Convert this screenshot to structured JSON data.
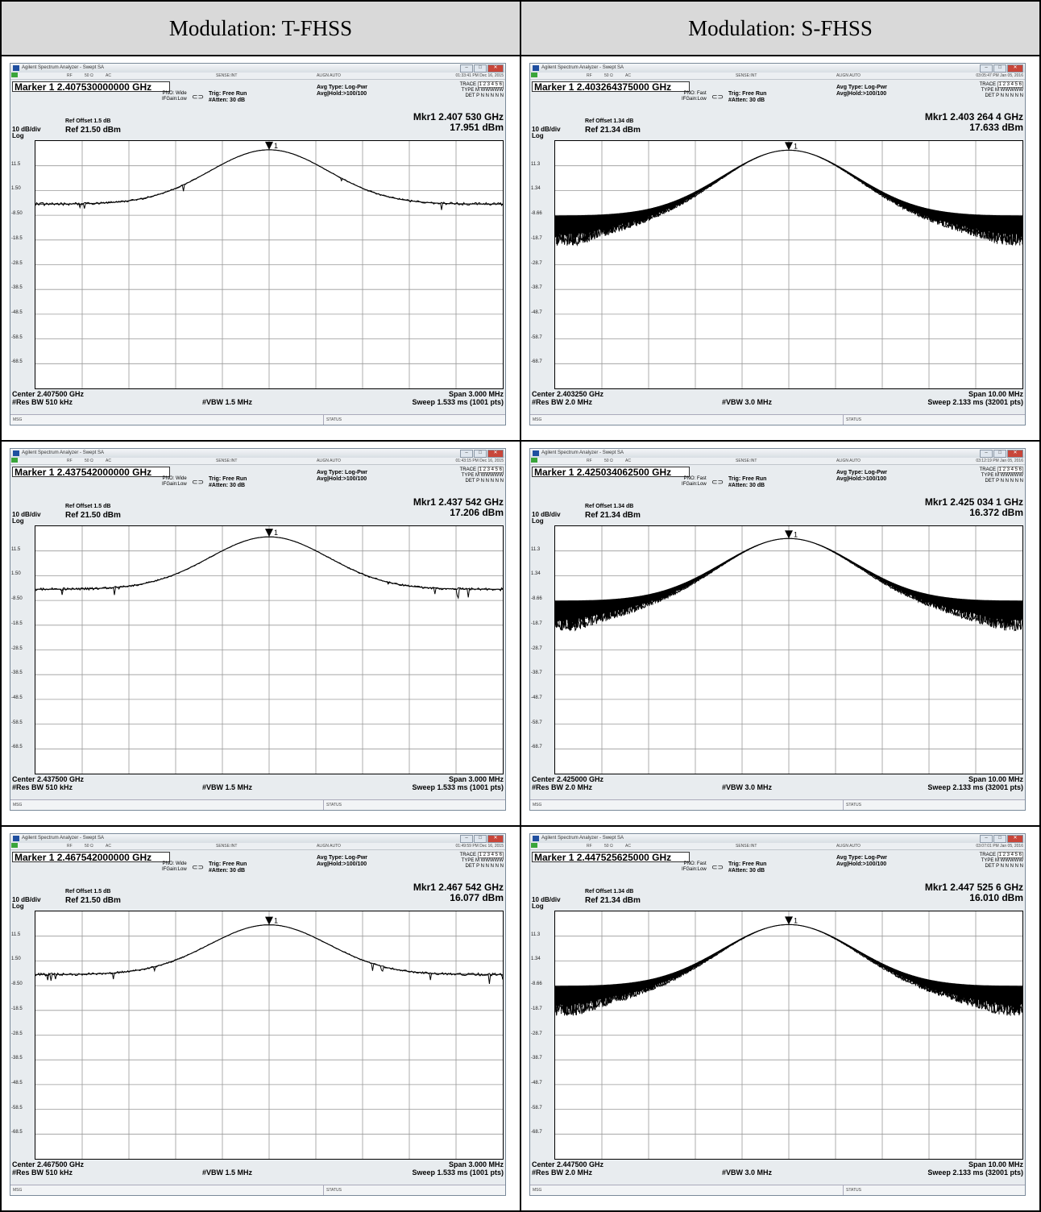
{
  "headers": [
    "Modulation: T-FHSS",
    "Modulation: S-FHSS"
  ],
  "common": {
    "window_title": "Agilent Spectrum Analyzer - Swept SA",
    "rf": "RF",
    "ohm": "50 Ω",
    "ac": "AC",
    "sense": "SENSE:INT",
    "align": "ALIGN AUTO",
    "avg_type": "Avg Type: Log-Pwr",
    "trig": "Trig: Free Run",
    "atten": "#Atten: 30 dB",
    "if_gain": "IFGain:Low",
    "trace_label": "TRACE",
    "trace_vals": "1 2 3 4 5 6",
    "type_label": "TYPE",
    "type_vals": "M WWWWW",
    "det_label": "DET",
    "det_vals": "P N N N N N",
    "db_div": "10 dB/div",
    "log": "Log",
    "msg": "MSG",
    "status": "STATUS"
  },
  "screens": [
    {
      "timestamp": "01:33:41 PM Dec 16, 2015",
      "marker": "Marker 1 2.407530000000 GHz",
      "pno": "PNO: Wide",
      "avg_hold": "Avg|Hold:>100/100",
      "mkr_freq": "Mkr1 2.407 530 GHz",
      "mkr_amp": "17.951 dBm",
      "ref_offset": "Ref Offset 1.5 dB",
      "ref": "Ref 21.50 dBm",
      "yticks": [
        "11.5",
        "1.50",
        "-8.50",
        "-18.5",
        "-28.5",
        "-38.5",
        "-48.5",
        "-58.5",
        "-68.5"
      ],
      "center": "Center 2.407500 GHz",
      "res_bw": "#Res BW 510 kHz",
      "vbw": "#VBW 1.5 MHz",
      "span": "Span 3.000 MHz",
      "sweep": "Sweep  1.533 ms (1001 pts)",
      "shape": "T",
      "peak": 17.951,
      "ref_level": 21.5
    },
    {
      "timestamp": "03:05:47 PM Jan 05, 2016",
      "marker": "Marker 1 2.403264375000 GHz",
      "pno": "PNO: Fast",
      "avg_hold": "Avg|Hold:>100/100",
      "mkr_freq": "Mkr1 2.403 264 4 GHz",
      "mkr_amp": "17.633 dBm",
      "ref_offset": "Ref Offset 1.34 dB",
      "ref": "Ref 21.34 dBm",
      "yticks": [
        "11.3",
        "1.34",
        "-8.66",
        "-18.7",
        "-28.7",
        "-38.7",
        "-48.7",
        "-58.7",
        "-68.7"
      ],
      "center": "Center 2.403250 GHz",
      "res_bw": "#Res BW 2.0 MHz",
      "vbw": "#VBW 3.0 MHz",
      "span": "Span 10.00 MHz",
      "sweep": "Sweep  2.133 ms (32001 pts)",
      "shape": "S",
      "peak": 17.633,
      "ref_level": 21.34
    },
    {
      "timestamp": "01:43:15 PM Dec 16, 2015",
      "marker": "Marker 1 2.437542000000 GHz",
      "pno": "PNO: Wide",
      "avg_hold": "Avg|Hold:>100/100",
      "mkr_freq": "Mkr1 2.437 542 GHz",
      "mkr_amp": "17.206 dBm",
      "ref_offset": "Ref Offset 1.5 dB",
      "ref": "Ref 21.50 dBm",
      "yticks": [
        "11.5",
        "1.50",
        "-8.50",
        "-18.5",
        "-28.5",
        "-38.5",
        "-48.5",
        "-58.5",
        "-68.5"
      ],
      "center": "Center 2.437500 GHz",
      "res_bw": "#Res BW 510 kHz",
      "vbw": "#VBW 1.5 MHz",
      "span": "Span 3.000 MHz",
      "sweep": "Sweep  1.533 ms (1001 pts)",
      "shape": "T",
      "peak": 17.206,
      "ref_level": 21.5
    },
    {
      "timestamp": "03:12:19 PM Jan 05, 2016",
      "marker": "Marker 1 2.425034062500 GHz",
      "pno": "PNO: Fast",
      "avg_hold": "Avg|Hold:>100/100",
      "mkr_freq": "Mkr1 2.425 034 1 GHz",
      "mkr_amp": "16.372 dBm",
      "ref_offset": "Ref Offset 1.34 dB",
      "ref": "Ref 21.34 dBm",
      "yticks": [
        "11.3",
        "1.34",
        "-8.66",
        "-18.7",
        "-28.7",
        "-38.7",
        "-48.7",
        "-58.7",
        "-68.7"
      ],
      "center": "Center 2.425000 GHz",
      "res_bw": "#Res BW 2.0 MHz",
      "vbw": "#VBW 3.0 MHz",
      "span": "Span 10.00 MHz",
      "sweep": "Sweep  2.133 ms (32001 pts)",
      "shape": "S",
      "peak": 16.372,
      "ref_level": 21.34
    },
    {
      "timestamp": "01:49:59 PM Dec 16, 2015",
      "marker": "Marker 1 2.467542000000 GHz",
      "pno": "PNO: Wide",
      "avg_hold": "Avg|Hold:>100/100",
      "mkr_freq": "Mkr1 2.467 542 GHz",
      "mkr_amp": "16.077 dBm",
      "ref_offset": "Ref Offset 1.5 dB",
      "ref": "Ref 21.50 dBm",
      "yticks": [
        "11.5",
        "1.50",
        "-8.50",
        "-18.5",
        "-28.5",
        "-38.5",
        "-48.5",
        "-58.5",
        "-68.5"
      ],
      "center": "Center 2.467500 GHz",
      "res_bw": "#Res BW 510 kHz",
      "vbw": "#VBW 1.5 MHz",
      "span": "Span 3.000 MHz",
      "sweep": "Sweep  1.533 ms (1001 pts)",
      "shape": "T",
      "peak": 16.077,
      "ref_level": 21.5
    },
    {
      "timestamp": "03:07:01 PM Jan 05, 2016",
      "marker": "Marker 1 2.447525625000 GHz",
      "pno": "PNO: Fast",
      "avg_hold": "Avg|Hold:>100/100",
      "mkr_freq": "Mkr1 2.447 525 6 GHz",
      "mkr_amp": "16.010 dBm",
      "ref_offset": "Ref Offset 1.34 dB",
      "ref": "Ref 21.34 dBm",
      "yticks": [
        "11.3",
        "1.34",
        "-8.66",
        "-18.7",
        "-28.7",
        "-38.7",
        "-48.7",
        "-58.7",
        "-68.7"
      ],
      "center": "Center 2.447500 GHz",
      "res_bw": "#Res BW 2.0 MHz",
      "vbw": "#VBW 3.0 MHz",
      "span": "Span 10.00 MHz",
      "sweep": "Sweep  2.133 ms (32001 pts)",
      "shape": "S",
      "peak": 16.01,
      "ref_level": 21.34
    }
  ]
}
